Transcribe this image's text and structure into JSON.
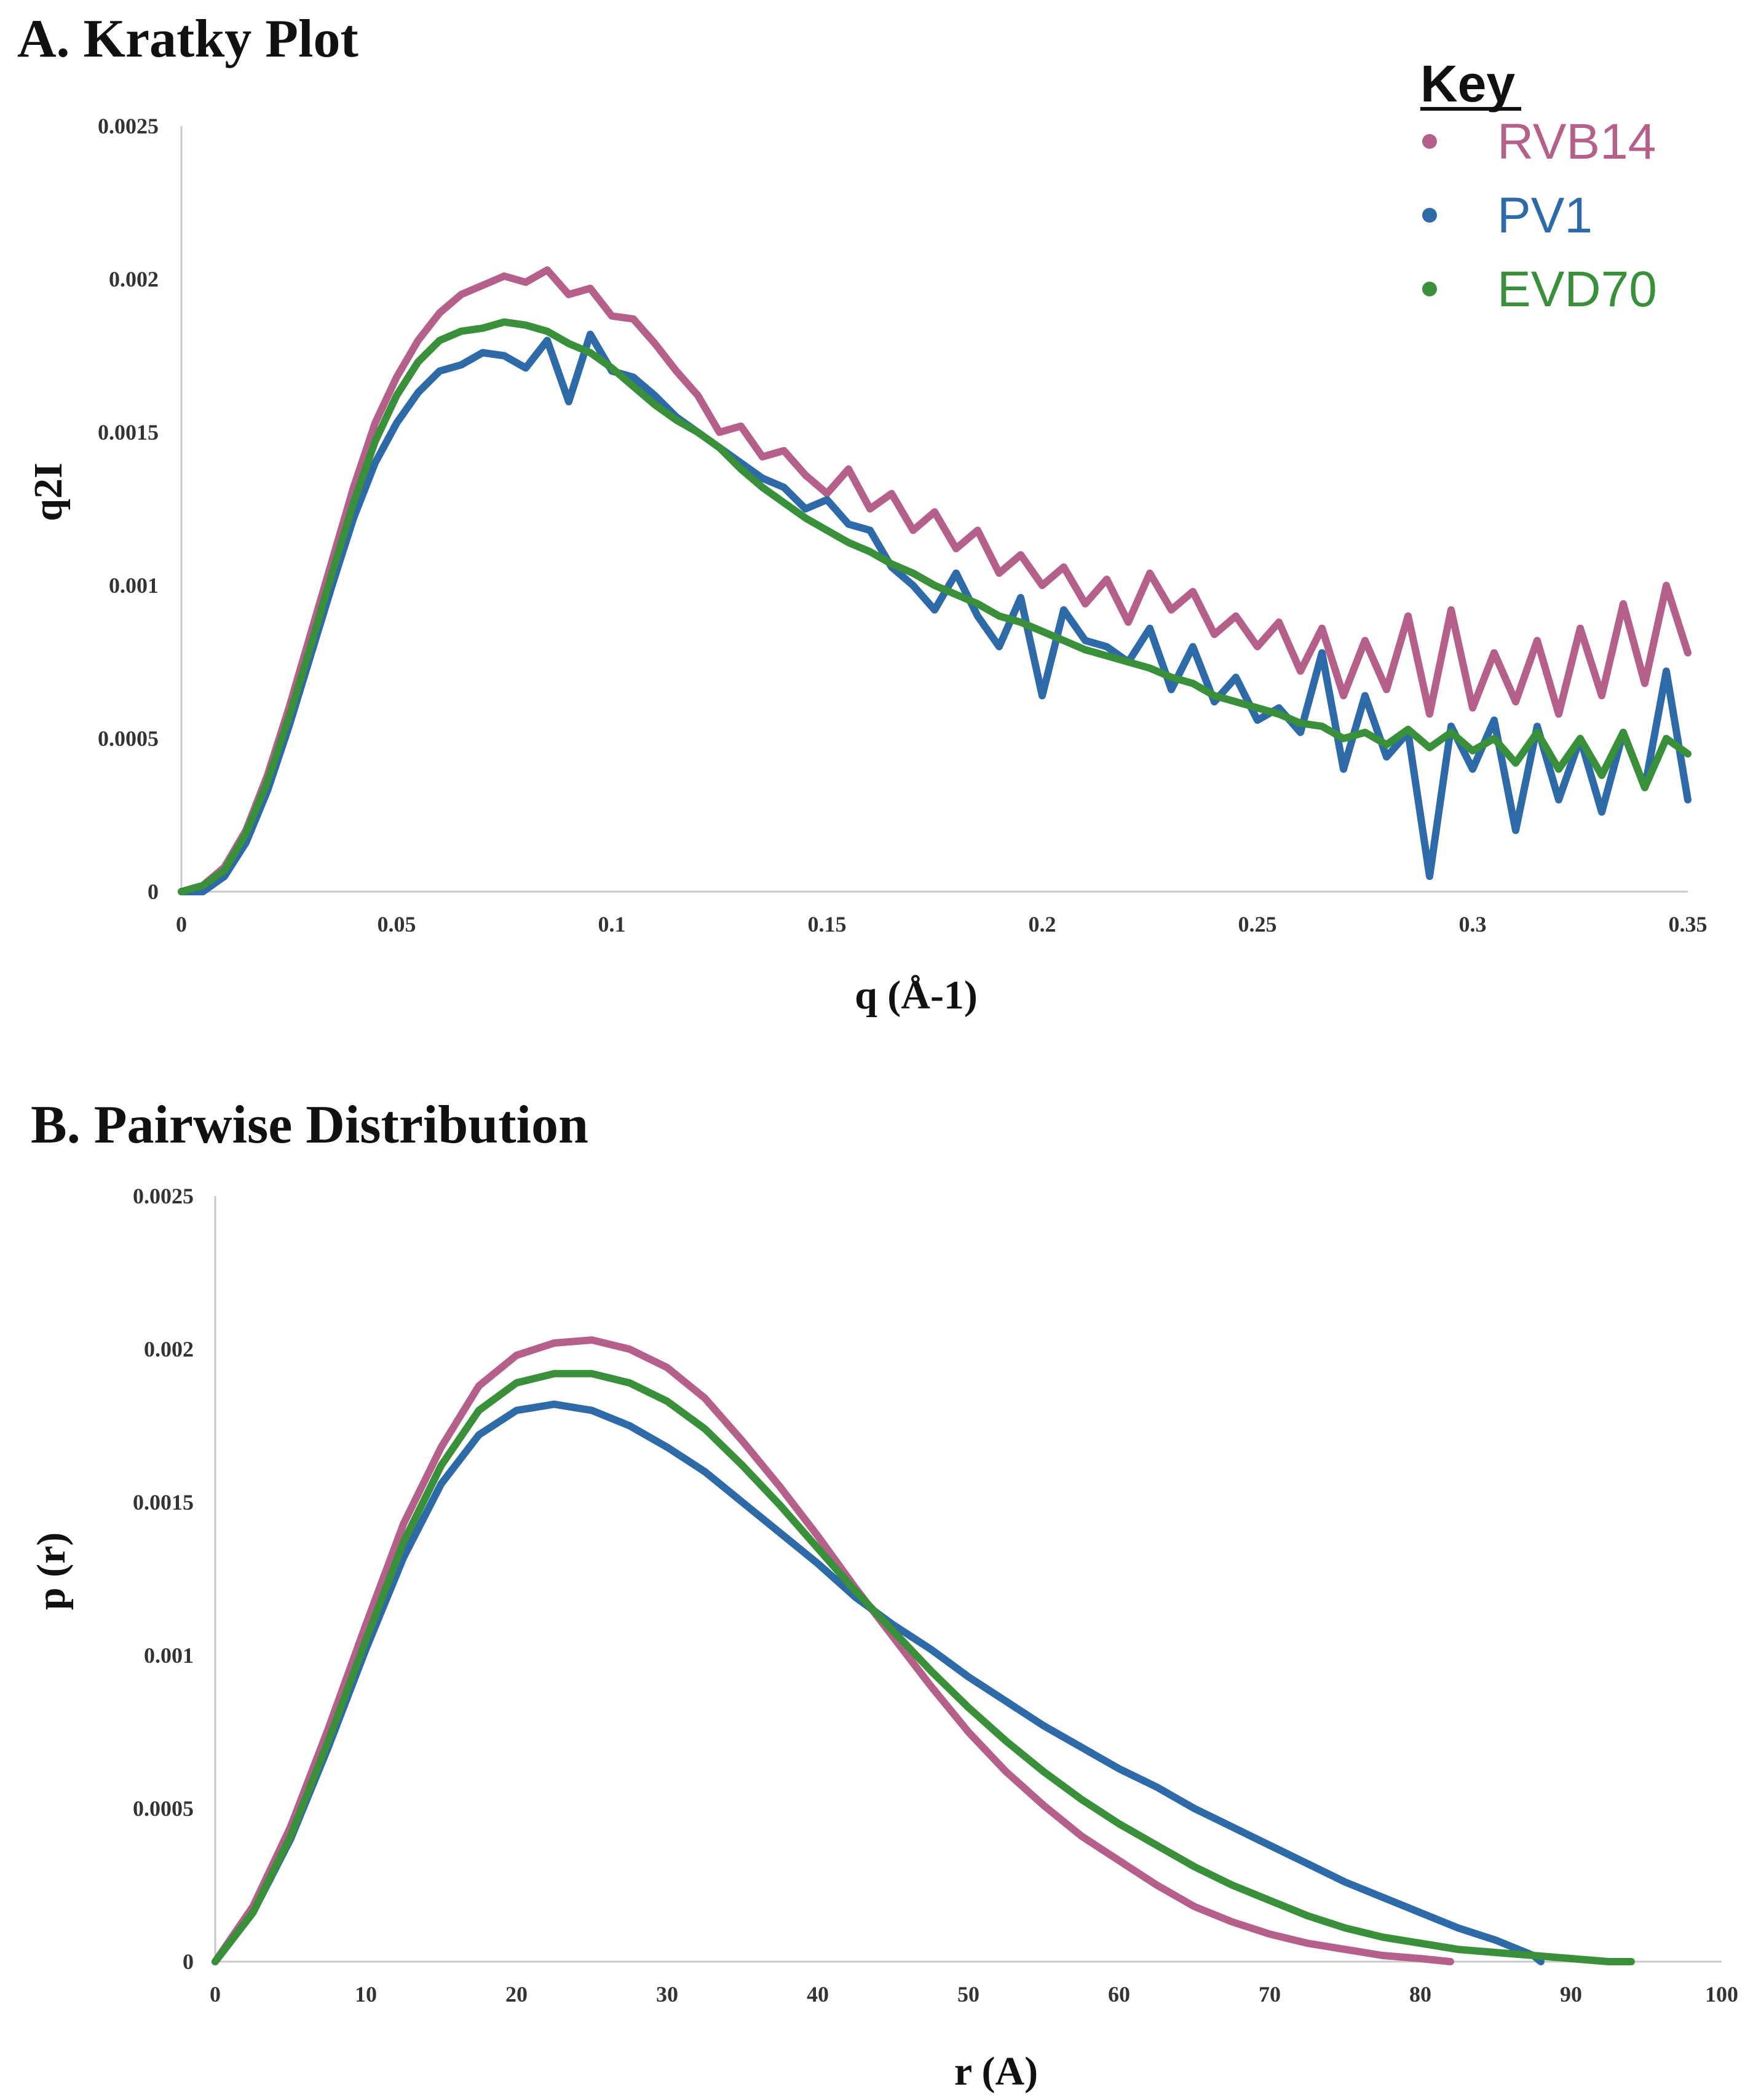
{
  "chart_data": [
    {
      "type": "line",
      "title": "A. Kratky Plot",
      "xlabel": "q (Å-1)",
      "ylabel": "q2I",
      "xlim": [
        0,
        0.35
      ],
      "ylim": [
        0,
        0.0025
      ],
      "x_ticks": [
        "0",
        "0.05",
        "0.1",
        "0.15",
        "0.2",
        "0.25",
        "0.3",
        "0.35"
      ],
      "y_ticks": [
        "0",
        "0.0005",
        "0.001",
        "0.0015",
        "0.002",
        "0.0025"
      ],
      "grid": false,
      "series": [
        {
          "name": "RVB14",
          "color": "#b5608b",
          "x": [
            0.0,
            0.005,
            0.01,
            0.015,
            0.02,
            0.025,
            0.03,
            0.035,
            0.04,
            0.045,
            0.05,
            0.055,
            0.06,
            0.065,
            0.07,
            0.075,
            0.08,
            0.085,
            0.09,
            0.095,
            0.1,
            0.105,
            0.11,
            0.115,
            0.12,
            0.125,
            0.13,
            0.135,
            0.14,
            0.145,
            0.15,
            0.155,
            0.16,
            0.165,
            0.17,
            0.175,
            0.18,
            0.185,
            0.19,
            0.195,
            0.2,
            0.205,
            0.21,
            0.215,
            0.22,
            0.225,
            0.23,
            0.235,
            0.24,
            0.245,
            0.25,
            0.255,
            0.26,
            0.265,
            0.27,
            0.275,
            0.28,
            0.285,
            0.29,
            0.295,
            0.3,
            0.305,
            0.31,
            0.315,
            0.32,
            0.325,
            0.33,
            0.335,
            0.34,
            0.345,
            0.35
          ],
          "y": [
            0.0,
            2e-05,
            8e-05,
            0.0002,
            0.00038,
            0.0006,
            0.00084,
            0.00108,
            0.00132,
            0.00153,
            0.00168,
            0.0018,
            0.00189,
            0.00195,
            0.00198,
            0.00201,
            0.00199,
            0.00203,
            0.00195,
            0.00197,
            0.00188,
            0.00187,
            0.00179,
            0.0017,
            0.00162,
            0.0015,
            0.00152,
            0.00142,
            0.00144,
            0.00136,
            0.0013,
            0.00138,
            0.00125,
            0.0013,
            0.00118,
            0.00124,
            0.00112,
            0.00118,
            0.00104,
            0.0011,
            0.001,
            0.00106,
            0.00094,
            0.00102,
            0.00088,
            0.00104,
            0.00092,
            0.00098,
            0.00084,
            0.0009,
            0.0008,
            0.00088,
            0.00072,
            0.00086,
            0.00064,
            0.00082,
            0.00066,
            0.0009,
            0.00058,
            0.00092,
            0.0006,
            0.00078,
            0.00062,
            0.00082,
            0.00058,
            0.00086,
            0.00064,
            0.00094,
            0.00068,
            0.001,
            0.00078
          ]
        },
        {
          "name": "PV1",
          "color": "#2e6aa8",
          "x": [
            0.0,
            0.005,
            0.01,
            0.015,
            0.02,
            0.025,
            0.03,
            0.035,
            0.04,
            0.045,
            0.05,
            0.055,
            0.06,
            0.065,
            0.07,
            0.075,
            0.08,
            0.085,
            0.09,
            0.095,
            0.1,
            0.105,
            0.11,
            0.115,
            0.12,
            0.125,
            0.13,
            0.135,
            0.14,
            0.145,
            0.15,
            0.155,
            0.16,
            0.165,
            0.17,
            0.175,
            0.18,
            0.185,
            0.19,
            0.195,
            0.2,
            0.205,
            0.21,
            0.215,
            0.22,
            0.225,
            0.23,
            0.235,
            0.24,
            0.245,
            0.25,
            0.255,
            0.26,
            0.265,
            0.27,
            0.275,
            0.28,
            0.285,
            0.29,
            0.295,
            0.3,
            0.305,
            0.31,
            0.315,
            0.32,
            0.325,
            0.33,
            0.335,
            0.34,
            0.345,
            0.35
          ],
          "y": [
            0.0,
            0.0,
            5e-05,
            0.00016,
            0.00033,
            0.00054,
            0.00077,
            0.001,
            0.00122,
            0.0014,
            0.00153,
            0.00163,
            0.0017,
            0.00172,
            0.00176,
            0.00175,
            0.00171,
            0.0018,
            0.0016,
            0.00182,
            0.0017,
            0.00168,
            0.00162,
            0.00155,
            0.0015,
            0.00145,
            0.0014,
            0.00135,
            0.00132,
            0.00125,
            0.00128,
            0.0012,
            0.00118,
            0.00106,
            0.001,
            0.00092,
            0.00104,
            0.0009,
            0.0008,
            0.00096,
            0.00064,
            0.00092,
            0.00082,
            0.0008,
            0.00075,
            0.00086,
            0.00066,
            0.0008,
            0.00062,
            0.0007,
            0.00056,
            0.0006,
            0.00052,
            0.00078,
            0.0004,
            0.00064,
            0.00044,
            0.00052,
            5e-05,
            0.00054,
            0.0004,
            0.00056,
            0.0002,
            0.00054,
            0.0003,
            0.0005,
            0.00026,
            0.00052,
            0.00034,
            0.00072,
            0.0003
          ]
        },
        {
          "name": "EVD70",
          "color": "#3a8f3a",
          "x": [
            0.0,
            0.005,
            0.01,
            0.015,
            0.02,
            0.025,
            0.03,
            0.035,
            0.04,
            0.045,
            0.05,
            0.055,
            0.06,
            0.065,
            0.07,
            0.075,
            0.08,
            0.085,
            0.09,
            0.095,
            0.1,
            0.105,
            0.11,
            0.115,
            0.12,
            0.125,
            0.13,
            0.135,
            0.14,
            0.145,
            0.15,
            0.155,
            0.16,
            0.165,
            0.17,
            0.175,
            0.18,
            0.185,
            0.19,
            0.195,
            0.2,
            0.205,
            0.21,
            0.215,
            0.22,
            0.225,
            0.23,
            0.235,
            0.24,
            0.245,
            0.25,
            0.255,
            0.26,
            0.265,
            0.27,
            0.275,
            0.28,
            0.285,
            0.29,
            0.295,
            0.3,
            0.305,
            0.31,
            0.315,
            0.32,
            0.325,
            0.33,
            0.335,
            0.34,
            0.345,
            0.35
          ],
          "y": [
            0.0,
            2e-05,
            7e-05,
            0.00019,
            0.00036,
            0.00057,
            0.0008,
            0.00104,
            0.00127,
            0.00147,
            0.00162,
            0.00173,
            0.0018,
            0.00183,
            0.00184,
            0.00186,
            0.00185,
            0.00183,
            0.00179,
            0.00176,
            0.00171,
            0.00165,
            0.00159,
            0.00154,
            0.0015,
            0.00145,
            0.00138,
            0.00132,
            0.00127,
            0.00122,
            0.00118,
            0.00114,
            0.00111,
            0.00107,
            0.00104,
            0.001,
            0.00097,
            0.00094,
            0.0009,
            0.00088,
            0.00085,
            0.00082,
            0.00079,
            0.00077,
            0.00075,
            0.00073,
            0.0007,
            0.00068,
            0.00064,
            0.00062,
            0.0006,
            0.00058,
            0.00055,
            0.00054,
            0.0005,
            0.00052,
            0.00048,
            0.00053,
            0.00047,
            0.00052,
            0.00046,
            0.0005,
            0.00042,
            0.00052,
            0.0004,
            0.0005,
            0.00038,
            0.00052,
            0.00034,
            0.0005,
            0.00045
          ]
        }
      ]
    },
    {
      "type": "line",
      "title": "B. Pairwise Distribution",
      "xlabel": "r (A)",
      "ylabel": "p (r)",
      "xlim": [
        0,
        100
      ],
      "ylim": [
        0,
        0.0025
      ],
      "x_ticks": [
        "0",
        "10",
        "20",
        "30",
        "40",
        "50",
        "60",
        "70",
        "80",
        "90",
        "100"
      ],
      "y_ticks": [
        "0",
        "0.0005",
        "0.001",
        "0.0015",
        "0.002",
        "0.0025"
      ],
      "grid": false,
      "series": [
        {
          "name": "RVB14",
          "color": "#b5608b",
          "x": [
            0,
            2.5,
            5,
            7.5,
            10,
            12.5,
            15,
            17.5,
            20,
            22.5,
            25,
            27.5,
            30,
            32.5,
            35,
            37.5,
            40,
            42.5,
            45,
            47.5,
            50,
            52.5,
            55,
            57.5,
            60,
            62.5,
            65,
            67.5,
            70,
            72.5,
            75,
            77.5,
            80,
            82
          ],
          "y": [
            0,
            0.00018,
            0.00044,
            0.00076,
            0.0011,
            0.00143,
            0.00168,
            0.00188,
            0.00198,
            0.00202,
            0.00203,
            0.002,
            0.00194,
            0.00184,
            0.0017,
            0.00155,
            0.00139,
            0.00122,
            0.00106,
            0.0009,
            0.00075,
            0.00062,
            0.00051,
            0.00041,
            0.00033,
            0.00025,
            0.00018,
            0.00013,
            9e-05,
            6e-05,
            4e-05,
            2e-05,
            1e-05,
            0.0
          ]
        },
        {
          "name": "PV1",
          "color": "#2e6aa8",
          "x": [
            0,
            2.5,
            5,
            7.5,
            10,
            12.5,
            15,
            17.5,
            20,
            22.5,
            25,
            27.5,
            30,
            32.5,
            35,
            37.5,
            40,
            42.5,
            45,
            47.5,
            50,
            52.5,
            55,
            57.5,
            60,
            62.5,
            65,
            67.5,
            70,
            72.5,
            75,
            77.5,
            80,
            82.5,
            85,
            87.5,
            88
          ],
          "y": [
            0,
            0.00016,
            0.0004,
            0.0007,
            0.00102,
            0.00132,
            0.00156,
            0.00172,
            0.0018,
            0.00182,
            0.0018,
            0.00175,
            0.00168,
            0.0016,
            0.0015,
            0.0014,
            0.0013,
            0.00119,
            0.0011,
            0.00102,
            0.00093,
            0.00085,
            0.00077,
            0.0007,
            0.00063,
            0.00057,
            0.0005,
            0.00044,
            0.00038,
            0.00032,
            0.00026,
            0.00021,
            0.00016,
            0.00011,
            7e-05,
            2e-05,
            0.0
          ]
        },
        {
          "name": "EVD70",
          "color": "#3a8f3a",
          "x": [
            0,
            2.5,
            5,
            7.5,
            10,
            12.5,
            15,
            17.5,
            20,
            22.5,
            25,
            27.5,
            30,
            32.5,
            35,
            37.5,
            40,
            42.5,
            45,
            47.5,
            50,
            52.5,
            55,
            57.5,
            60,
            62.5,
            65,
            67.5,
            70,
            72.5,
            75,
            77.5,
            80,
            82.5,
            85,
            87.5,
            90,
            92.5,
            94
          ],
          "y": [
            0,
            0.00016,
            0.00041,
            0.00072,
            0.00105,
            0.00137,
            0.00162,
            0.0018,
            0.00189,
            0.00192,
            0.00192,
            0.00189,
            0.00183,
            0.00174,
            0.00162,
            0.00149,
            0.00135,
            0.00121,
            0.00108,
            0.00095,
            0.00083,
            0.00072,
            0.00062,
            0.00053,
            0.00045,
            0.00038,
            0.00031,
            0.00025,
            0.0002,
            0.00015,
            0.00011,
            8e-05,
            6e-05,
            4e-05,
            3e-05,
            2e-05,
            1e-05,
            0.0,
            0.0
          ]
        }
      ]
    }
  ],
  "legend": {
    "title": "Key",
    "placement": "top-right",
    "entries": [
      {
        "label": "RVB14",
        "color": "#b5608b"
      },
      {
        "label": "PV1",
        "color": "#2e6aa8"
      },
      {
        "label": "EVD70",
        "color": "#3a8f3a"
      }
    ]
  }
}
